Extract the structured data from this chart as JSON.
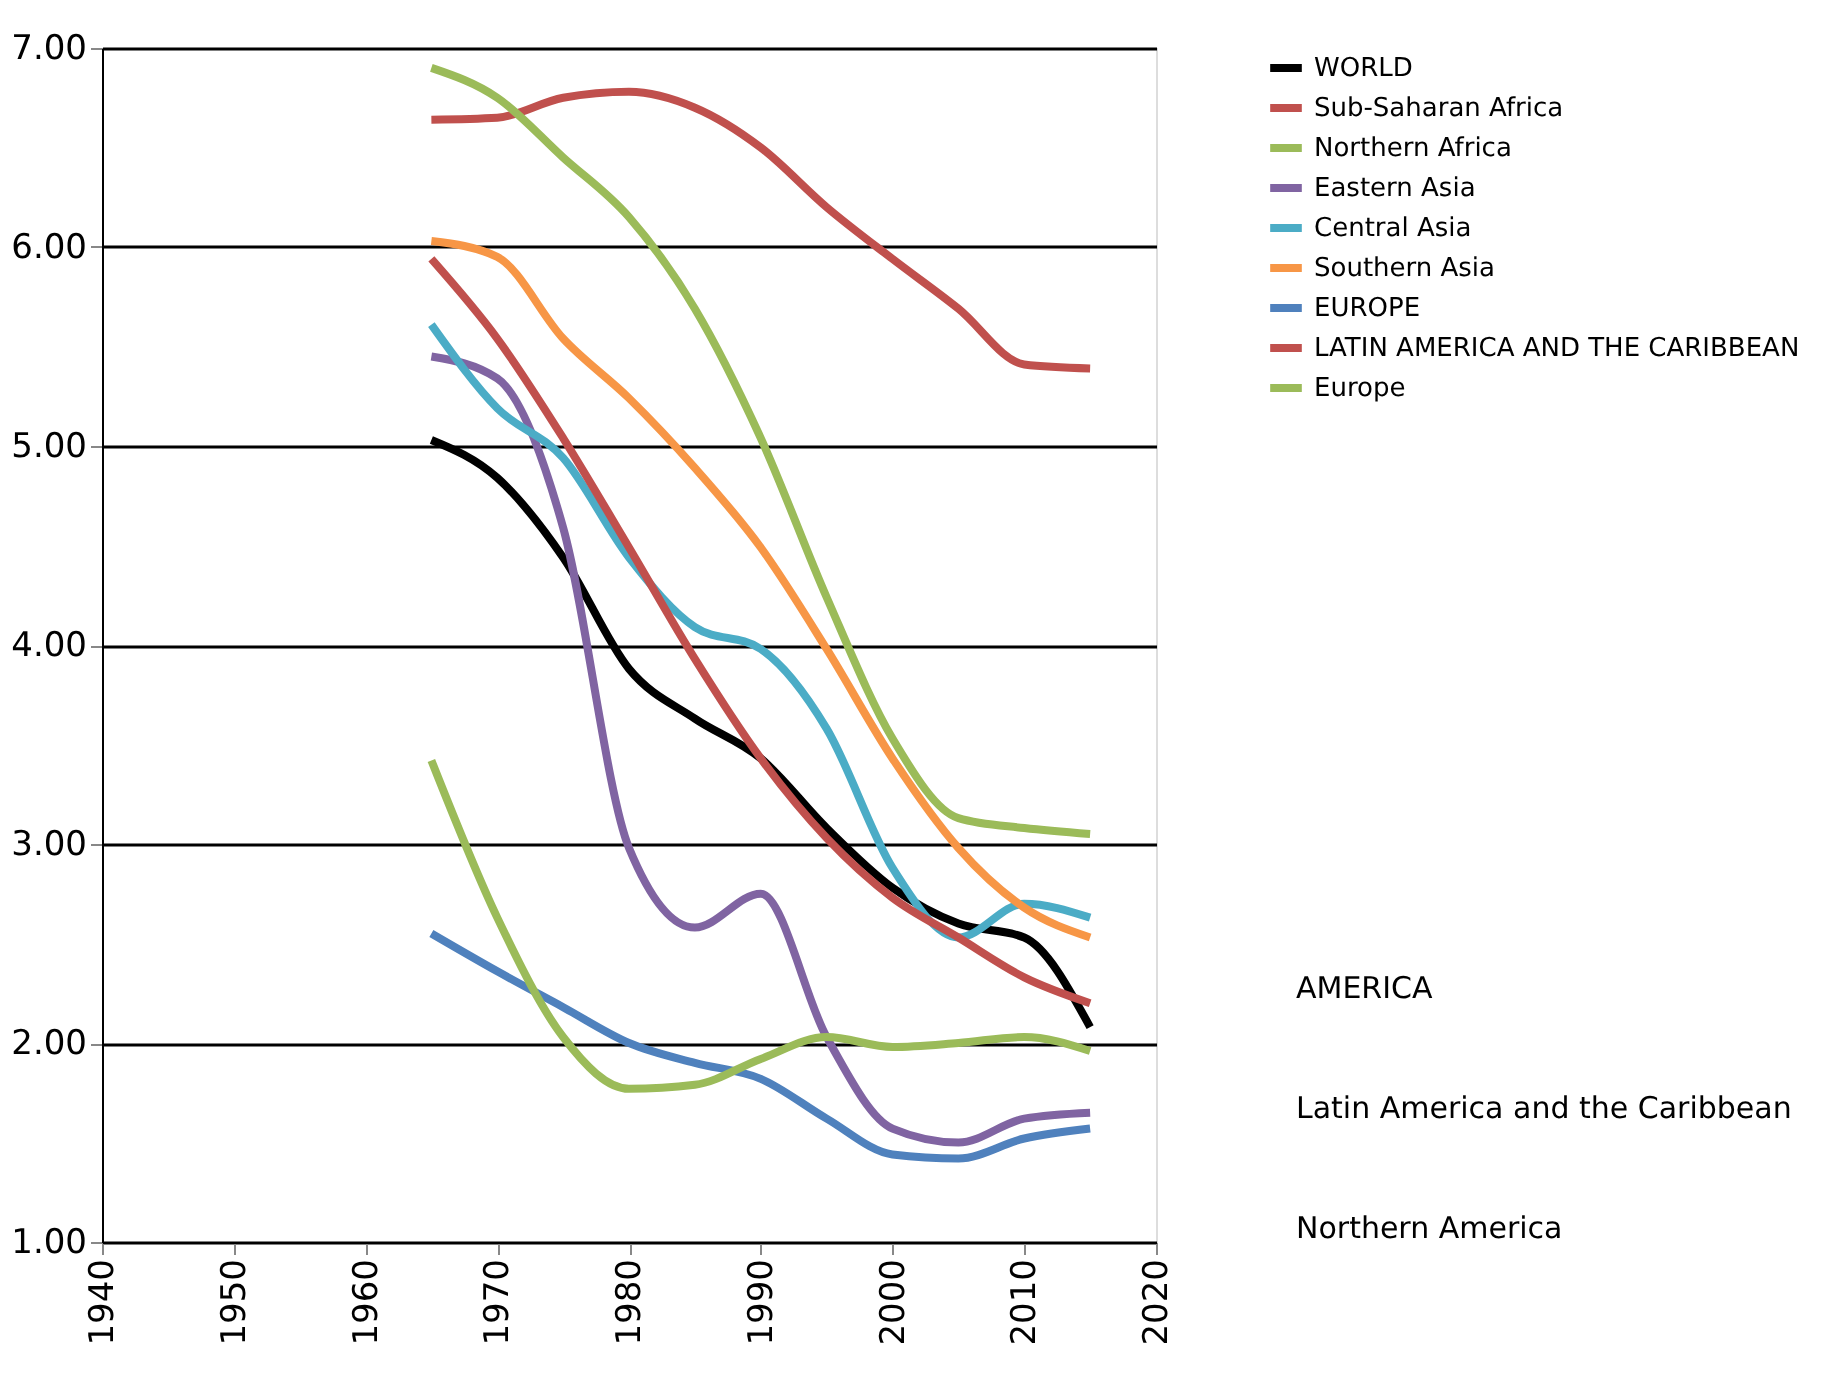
{
  "chart_data": {
    "type": "line",
    "x": [
      1965,
      1970,
      1975,
      1980,
      1985,
      1990,
      1995,
      2000,
      2005,
      2010,
      2015
    ],
    "xlim": [
      1940,
      2020
    ],
    "xticks": [
      1940,
      1950,
      1960,
      1970,
      1980,
      1990,
      2000,
      2010,
      2020
    ],
    "ylim": [
      1,
      7
    ],
    "yticks": [
      {
        "value": 1,
        "label": "1.00"
      },
      {
        "value": 2,
        "label": "2.00"
      },
      {
        "value": 3,
        "label": "3.00"
      },
      {
        "value": 4,
        "label": "4.00"
      },
      {
        "value": 5,
        "label": "5.00"
      },
      {
        "value": 6,
        "label": "6.00"
      },
      {
        "value": 7,
        "label": "7.00"
      }
    ],
    "grid": "y",
    "legend": "right",
    "marker": "none",
    "line_style": "solid",
    "series": [
      {
        "name": "WORLD",
        "color": "#000000",
        "values": [
          5.03,
          4.84,
          4.44,
          3.88,
          3.63,
          3.43,
          3.08,
          2.78,
          2.6,
          2.53,
          2.08
        ]
      },
      {
        "name": "Sub-Saharan Africa",
        "color": "#c0504d",
        "values": [
          6.64,
          6.65,
          6.75,
          6.78,
          6.7,
          6.5,
          6.2,
          5.94,
          5.69,
          5.41,
          5.39
        ]
      },
      {
        "name": "Northern Africa",
        "color": "#9bbb59",
        "values": [
          6.9,
          6.75,
          6.45,
          6.15,
          5.69,
          5.04,
          4.24,
          3.53,
          3.13,
          3.08,
          3.05
        ]
      },
      {
        "name": "Eastern Asia",
        "color": "#8064a2",
        "values": [
          5.45,
          5.34,
          4.59,
          2.98,
          2.58,
          2.75,
          2.03,
          1.57,
          1.5,
          1.62,
          1.65
        ]
      },
      {
        "name": "Central Asia",
        "color": "#4bacc6",
        "values": [
          5.61,
          5.19,
          4.94,
          4.44,
          4.09,
          3.98,
          3.58,
          2.88,
          2.53,
          2.7,
          2.63
        ]
      },
      {
        "name": "Southern Asia",
        "color": "#f79646",
        "values": [
          6.03,
          5.95,
          5.54,
          5.24,
          4.89,
          4.49,
          3.98,
          3.43,
          2.98,
          2.68,
          2.53
        ]
      },
      {
        "name": "EUROPE",
        "color": "#4f81bd",
        "values": [
          2.55,
          2.36,
          2.18,
          2.0,
          1.9,
          1.82,
          1.62,
          1.44,
          1.42,
          1.52,
          1.57
        ]
      },
      {
        "name": "LATIN AMERICA AND THE CARIBBEAN",
        "color": "#c0504d",
        "values": [
          5.94,
          5.54,
          5.04,
          4.49,
          3.93,
          3.43,
          3.03,
          2.73,
          2.53,
          2.33,
          2.2
        ]
      },
      {
        "name": "Europe",
        "color": "#9bbb59",
        "values": [
          3.42,
          2.63,
          2.03,
          1.77,
          1.79,
          1.92,
          2.03,
          1.98,
          2.0,
          2.03,
          1.96
        ]
      }
    ],
    "annotations": [
      "AMERICA",
      "Latin America and the Caribbean",
      "Northern America"
    ]
  }
}
